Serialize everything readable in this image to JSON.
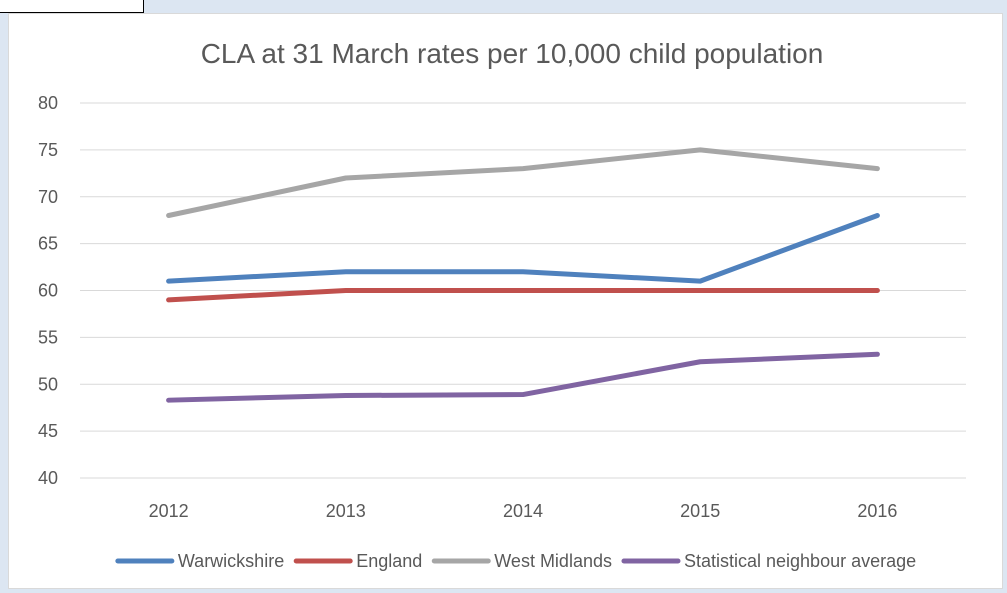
{
  "chart_data": {
    "type": "line",
    "title": "CLA at 31 March rates per 10,000 child population",
    "categories": [
      "2012",
      "2013",
      "2014",
      "2015",
      "2016"
    ],
    "ylim": [
      40,
      80
    ],
    "yticks": [
      "80",
      "75",
      "70",
      "65",
      "60",
      "55",
      "50",
      "45",
      "40"
    ],
    "grid": true,
    "legend_position": "bottom",
    "series": [
      {
        "name": "Warwickshire",
        "color": "#4f81bd",
        "values": [
          61,
          62,
          62,
          61,
          68
        ]
      },
      {
        "name": "England",
        "color": "#c0504d",
        "values": [
          59,
          60,
          60,
          60,
          60
        ]
      },
      {
        "name": "West Midlands",
        "color": "#a6a6a6",
        "values": [
          68,
          72,
          73,
          75,
          73
        ]
      },
      {
        "name": "Statistical neighbour average",
        "color": "#8064a2",
        "values": [
          48.3,
          48.8,
          48.9,
          52.4,
          53.2
        ]
      }
    ]
  }
}
